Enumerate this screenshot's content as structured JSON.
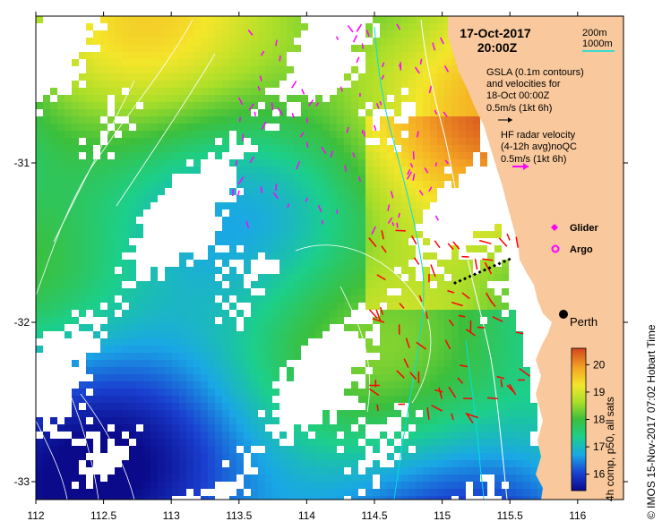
{
  "title": {
    "date": "17-Oct-2017",
    "time": "20:00Z"
  },
  "bathymetry_legend": {
    "contour_200": "200m",
    "contour_1000": "1000m"
  },
  "gsla_legend": {
    "line1": "GSLA (0.1m contours)",
    "line2": "and velocities for",
    "line3": "18-Oct 00:00Z",
    "scale": "0.5m/s (1kt 6h)"
  },
  "radar_legend": {
    "line1": "HF radar velocity",
    "line2": "(4-12h avg)noQC",
    "scale": "0.5m/s (1kt 6h)"
  },
  "markers": {
    "glider": "Glider",
    "argo": "Argo"
  },
  "city": {
    "name": "Perth"
  },
  "axes": {
    "x_ticks": [
      "112",
      "112.5",
      "113",
      "113.5",
      "114",
      "114.5",
      "115",
      "115.5",
      "116"
    ],
    "y_ticks": [
      "-31",
      "-32",
      "-33"
    ]
  },
  "colorbar": {
    "label": "4h comp, p50, all sats",
    "ticks": [
      "16",
      "17",
      "18",
      "19",
      "20"
    ],
    "range": [
      15.4,
      20.6
    ]
  },
  "credit": "© IMOS 15-Nov-2017 07:02 Hobart Time",
  "colors": {
    "land": "#f9c89c",
    "glider": "#ff00ff",
    "radar_arrows": "#ff00ff",
    "gsla_arrows": "#ff0000",
    "contour_200": "#ffffff",
    "contour_1000": "#00e0e0"
  }
}
